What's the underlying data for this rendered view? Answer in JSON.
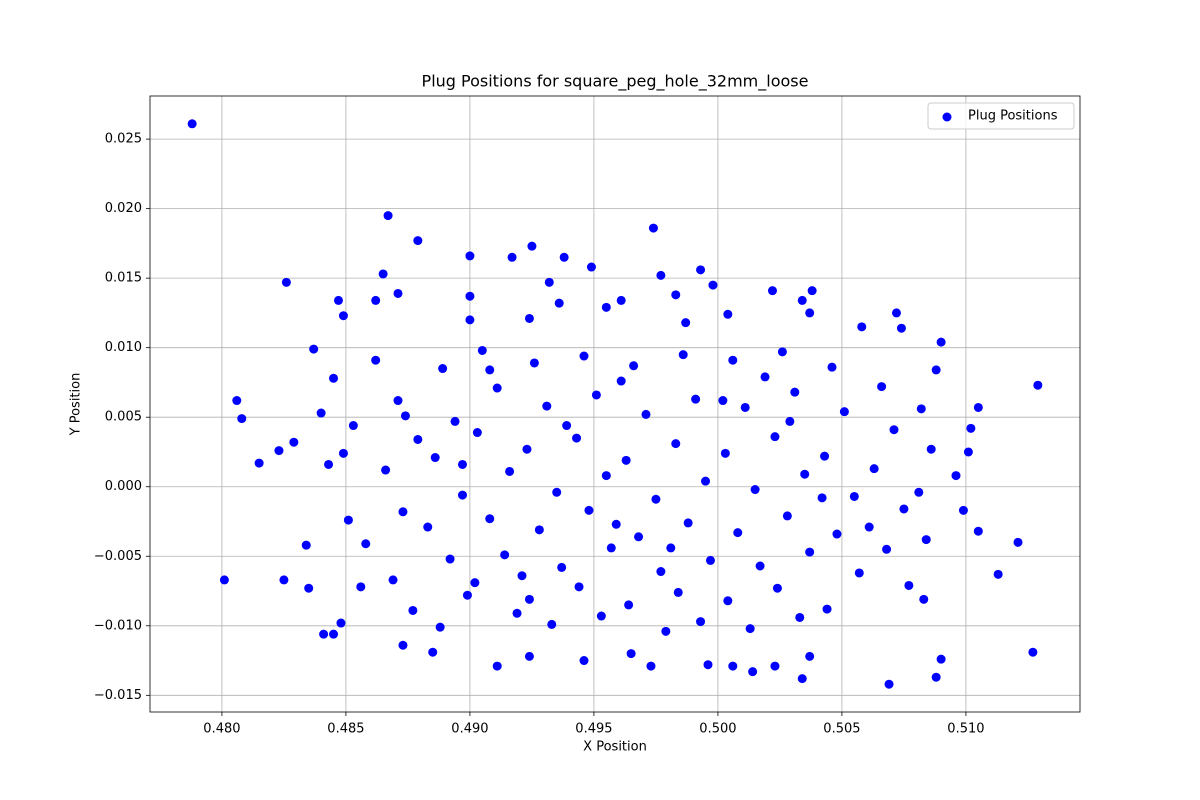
{
  "chart_data": {
    "type": "scatter",
    "title": "Plug Positions for square_peg_hole_32mm_loose",
    "x_label": "X Position",
    "y_label": "Y Position",
    "grid": true,
    "legend": "upper right",
    "xlim": [
      0.4771,
      0.5146
    ],
    "ylim": [
      -0.0162,
      0.0281
    ],
    "xticks": [
      {
        "value": 0.48,
        "label": "0.480"
      },
      0.485,
      {
        "value": 0.49,
        "label": "0.490"
      },
      0.495,
      {
        "value": 0.5,
        "label": "0.500"
      },
      0.505,
      {
        "value": 0.51,
        "label": "0.510"
      }
    ],
    "yticks": [
      {
        "value": -0.015,
        "label": "−0.015"
      },
      {
        "value": -0.01,
        "label": "−0.010"
      },
      {
        "value": -0.005,
        "label": "−0.005"
      },
      {
        "value": 0,
        "label": "0.000"
      },
      0.005,
      {
        "value": 0.01,
        "label": "0.010"
      },
      0.015,
      {
        "value": 0.02,
        "label": "0.020"
      },
      0.025
    ],
    "x": [
      0.4788,
      0.4801,
      0.4806,
      0.4808,
      0.4815,
      0.4823,
      0.4825,
      0.4826,
      0.4829,
      0.4867,
      0.4879,
      0.49,
      0.4917,
      0.4925,
      0.4938,
      0.4949,
      0.4974,
      0.4977,
      0.4993,
      0.4998,
      0.5022,
      0.5038,
      0.5129,
      0.5127,
      0.5121,
      0.5113,
      0.5105,
      0.5099,
      0.5105,
      0.5102,
      0.5101,
      0.5096,
      0.5069,
      0.5088,
      0.509,
      0.5034,
      0.4911,
      0.4924,
      0.4885,
      0.4873,
      0.4946,
      0.4965,
      0.4973,
      0.4996,
      0.5006,
      0.5014,
      0.5023,
      0.5037,
      0.4841,
      0.4845,
      0.4835,
      0.4834,
      0.4837,
      0.4847,
      0.4849,
      0.4845,
      0.484,
      0.4843,
      0.4862,
      0.4865,
      0.4871,
      0.49,
      0.49,
      0.4924,
      0.4932,
      0.4936,
      0.4955,
      0.4961,
      0.4983,
      0.4987,
      0.5004,
      0.5034,
      0.5037,
      0.5058,
      0.5072,
      0.5074,
      0.509,
      0.5088,
      0.4862,
      0.4871,
      0.4879,
      0.4866,
      0.4873,
      0.4858,
      0.4869,
      0.4877,
      0.4889,
      0.4894,
      0.4886,
      0.4897,
      0.4883,
      0.4892,
      0.4899,
      0.4888,
      0.4905,
      0.4911,
      0.4903,
      0.4916,
      0.4908,
      0.4914,
      0.4902,
      0.4919,
      0.4926,
      0.4931,
      0.4923,
      0.4935,
      0.4928,
      0.4937,
      0.4924,
      0.4933,
      0.4946,
      0.4951,
      0.4943,
      0.4955,
      0.4948,
      0.4957,
      0.4944,
      0.4953,
      0.4966,
      0.4971,
      0.4963,
      0.4975,
      0.4968,
      0.4977,
      0.4964,
      0.4979,
      0.4986,
      0.4991,
      0.4983,
      0.4995,
      0.4988,
      0.4997,
      0.4984,
      0.4993,
      0.5006,
      0.5011,
      0.5003,
      0.5015,
      0.5008,
      0.5017,
      0.5004,
      0.5013,
      0.5026,
      0.5031,
      0.5023,
      0.5035,
      0.5028,
      0.5037,
      0.5024,
      0.5033,
      0.5046,
      0.5051,
      0.5043,
      0.5055,
      0.5048,
      0.5057,
      0.5044,
      0.5066,
      0.5071,
      0.5063,
      0.5075,
      0.5068,
      0.5077,
      0.5082,
      0.5086,
      0.5081,
      0.5084,
      0.5083,
      0.4853,
      0.4851,
      0.4849,
      0.4856,
      0.4848,
      0.4908,
      0.4961,
      0.5019,
      0.4939,
      0.4981,
      0.5042,
      0.4897,
      0.4959,
      0.5029,
      0.4921,
      0.5061,
      0.4874,
      0.5002
    ],
    "series": [
      {
        "name": "Plug Positions",
        "color": "#0000ff",
        "values": [
          0.0261,
          -0.0067,
          0.0062,
          0.0049,
          0.0017,
          0.0026,
          -0.0067,
          0.0147,
          0.0032,
          0.0195,
          0.0177,
          0.0166,
          0.0165,
          0.0173,
          0.0165,
          0.0158,
          0.0186,
          0.0152,
          0.0156,
          0.0145,
          0.0141,
          0.0141,
          0.0073,
          -0.0119,
          -0.004,
          -0.0063,
          -0.0032,
          -0.0017,
          0.0057,
          0.0042,
          0.0025,
          0.0008,
          -0.0142,
          -0.0137,
          -0.0124,
          -0.0138,
          -0.0129,
          -0.0122,
          -0.0119,
          -0.0114,
          -0.0125,
          -0.012,
          -0.0129,
          -0.0128,
          -0.0129,
          -0.0133,
          -0.0129,
          -0.0122,
          -0.0106,
          -0.0106,
          -0.0073,
          -0.0042,
          0.0099,
          0.0134,
          0.0123,
          0.0078,
          0.0053,
          0.0016,
          0.0134,
          0.0153,
          0.0139,
          0.0137,
          0.012,
          0.0121,
          0.0147,
          0.0132,
          0.0129,
          0.0134,
          0.0138,
          0.0118,
          0.0124,
          0.0134,
          0.0125,
          0.0115,
          0.0125,
          0.0114,
          0.0104,
          0.0084,
          0.0091,
          0.0062,
          0.0034,
          0.0012,
          -0.0018,
          -0.0041,
          -0.0067,
          -0.0089,
          0.0085,
          0.0047,
          0.0021,
          -0.0006,
          -0.0029,
          -0.0052,
          -0.0078,
          -0.0101,
          0.0098,
          0.0071,
          0.0039,
          0.0011,
          -0.0023,
          -0.0049,
          -0.0069,
          -0.0091,
          0.0089,
          0.0058,
          0.0027,
          -0.0004,
          -0.0031,
          -0.0058,
          -0.0081,
          -0.0099,
          0.0094,
          0.0066,
          0.0035,
          0.0008,
          -0.0017,
          -0.0044,
          -0.0072,
          -0.0093,
          0.0087,
          0.0052,
          0.0019,
          -0.0009,
          -0.0036,
          -0.0061,
          -0.0085,
          -0.0104,
          0.0095,
          0.0063,
          0.0031,
          0.0004,
          -0.0026,
          -0.0053,
          -0.0076,
          -0.0097,
          0.0091,
          0.0057,
          0.0024,
          -0.0002,
          -0.0033,
          -0.0057,
          -0.0082,
          -0.0102,
          0.0097,
          0.0068,
          0.0036,
          0.0009,
          -0.0021,
          -0.0047,
          -0.0073,
          -0.0094,
          0.0086,
          0.0054,
          0.0022,
          -0.0007,
          -0.0034,
          -0.0062,
          -0.0088,
          0.0072,
          0.0041,
          0.0013,
          -0.0016,
          -0.0045,
          -0.0071,
          0.0056,
          0.0027,
          -0.0004,
          -0.0038,
          -0.0081,
          0.0044,
          -0.0024,
          0.0024,
          -0.0072,
          -0.0098,
          0.0084,
          0.0076,
          0.0079,
          0.0044,
          -0.0044,
          -0.0008,
          0.0016,
          -0.0027,
          0.0047,
          -0.0064,
          -0.0029,
          0.0051,
          0.0062
        ]
      }
    ]
  }
}
